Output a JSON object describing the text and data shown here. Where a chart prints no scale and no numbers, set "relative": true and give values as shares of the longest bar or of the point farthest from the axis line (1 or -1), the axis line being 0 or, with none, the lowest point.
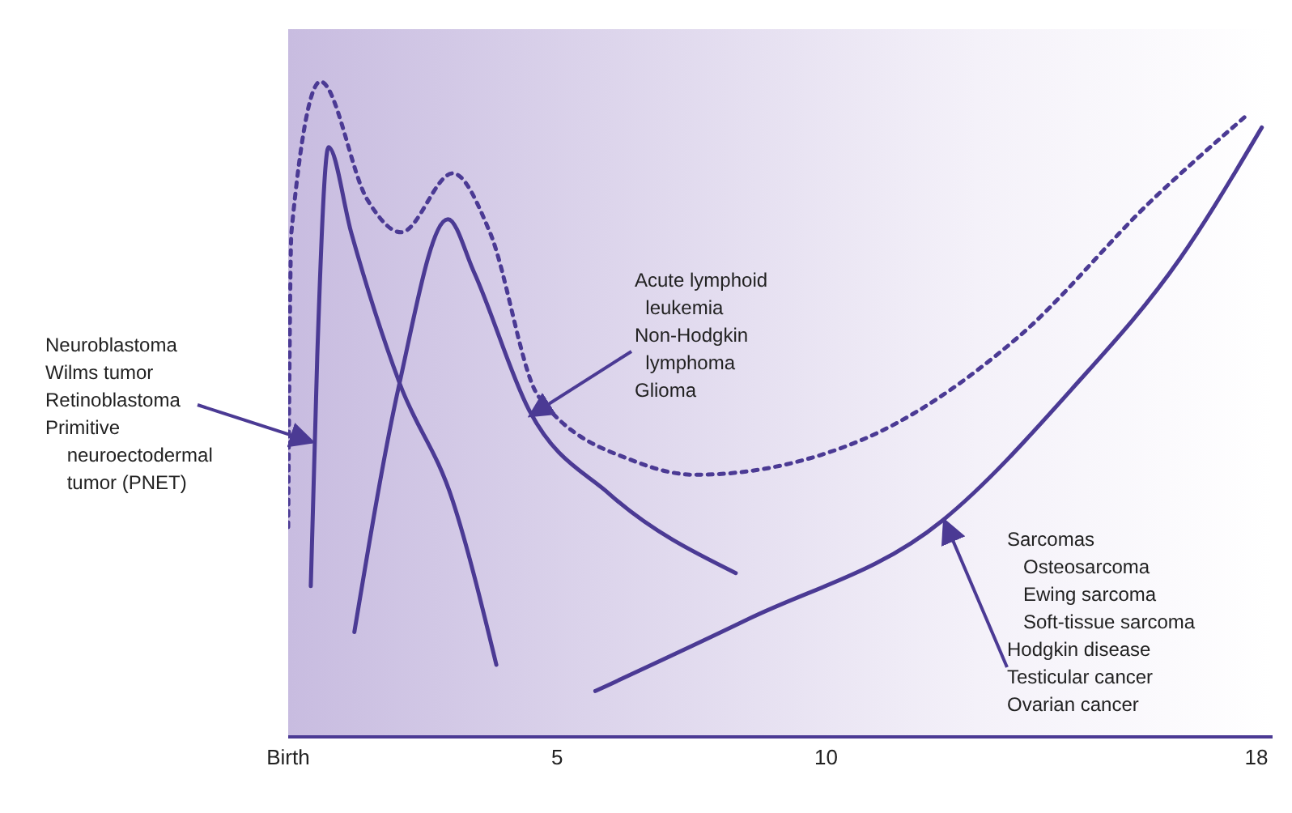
{
  "chart_data": {
    "type": "line",
    "relative": true,
    "xlim": [
      0,
      18.3
    ],
    "xticks": [
      {
        "value": 0,
        "label": "Birth"
      },
      5,
      10,
      18
    ],
    "series": [
      {
        "color": "#4b3a94",
        "line_style": "solid",
        "x": [
          0.42,
          0.54,
          0.75,
          1.17,
          2.07,
          3.06,
          3.87
        ],
        "values": [
          0.23,
          0.58,
          0.9,
          0.77,
          0.54,
          0.36,
          0.11
        ]
      },
      {
        "color": "#4b3a94",
        "line_style": "solid",
        "x": [
          1.23,
          2.07,
          2.97,
          3.45,
          4.47,
          5.98,
          8.32
        ],
        "values": [
          0.16,
          0.54,
          0.79,
          0.71,
          0.5,
          0.37,
          0.25
        ]
      },
      {
        "color": "#4b3a94",
        "line_style": "solid",
        "x": [
          5.71,
          8.56,
          12.16,
          14.56,
          16.58,
          18.1
        ],
        "values": [
          0.07,
          0.18,
          0.33,
          0.53,
          0.73,
          0.93
        ]
      },
      {
        "color": "#4b3a94",
        "line_style": "dotted",
        "x": [
          0,
          0.06,
          0.6,
          1.47,
          2.1,
          3.06,
          3.75,
          4.65,
          6.46,
          7.57,
          10.57,
          13.57,
          16.07,
          17.84
        ],
        "values": [
          0.32,
          0.77,
          1.0,
          0.82,
          0.77,
          0.86,
          0.77,
          0.52,
          0.42,
          0.4,
          0.45,
          0.61,
          0.82,
          0.95
        ]
      }
    ],
    "annotations": [
      {
        "text": "Neuroblastoma\nWilms tumor\nRetinoblastoma\nPrimitive\n    neuroectodermal\n    tumor (PNET)",
        "x": 0.45,
        "y": 0.45
      },
      {
        "text": "Acute lymphoid\n  leukemia\nNon-Hodgkin\n  lymphoma\nGlioma",
        "x": 4.5,
        "y": 0.49
      },
      {
        "text": "Sarcomas\n   Osteosarcoma\n   Ewing sarcoma\n   Soft-tissue sarcoma\nHodgkin disease\nTesticular cancer\nOvarian cancer",
        "x": 12.2,
        "y": 0.33
      }
    ]
  }
}
